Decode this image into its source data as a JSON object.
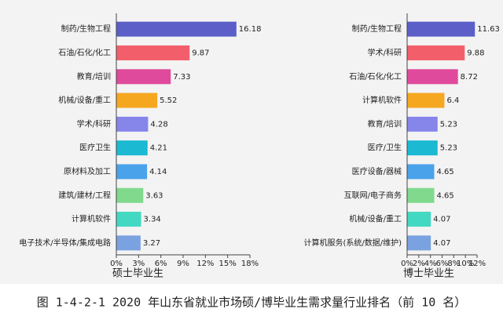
{
  "chart_data": [
    {
      "type": "barh",
      "xlabel": "硕士毕业生",
      "categories": [
        "制药/生物工程",
        "石油/石化/化工",
        "教育/培训",
        "机械/设备/重工",
        "学术/科研",
        "医疗卫生",
        "原材料及加工",
        "建筑/建材/工程",
        "计算机软件",
        "电子技术/半导体/集成电路"
      ],
      "values": [
        16.18,
        9.87,
        7.33,
        5.52,
        4.28,
        4.21,
        4.14,
        3.63,
        3.34,
        3.27
      ],
      "colors": [
        "#5b5fc7",
        "#f25f6b",
        "#e04a9c",
        "#f6a720",
        "#8585ea",
        "#1cb9d2",
        "#4aa2ea",
        "#80d98c",
        "#43d8c2",
        "#7ba2e0"
      ],
      "xlim": [
        0,
        18
      ],
      "xticks": [
        {
          "value": 0,
          "label": "0%"
        },
        {
          "value": 3,
          "label": "3%"
        },
        {
          "value": 6,
          "label": "6%"
        },
        {
          "value": 9,
          "label": "9%"
        },
        {
          "value": 12,
          "label": "12%"
        },
        {
          "value": 15,
          "label": "15%"
        },
        {
          "value": 18,
          "label": "18%"
        }
      ]
    },
    {
      "type": "barh",
      "xlabel": "博士毕业生",
      "categories": [
        "制药/生物工程",
        "学术/科研",
        "石油/石化/化工",
        "计算机软件",
        "教育/培训",
        "医疗/卫生",
        "医疗设备/器械",
        "互联网/电子商务",
        "机械/设备/重工",
        "计算机服务(系统/数据/维护)"
      ],
      "values": [
        11.63,
        9.88,
        8.72,
        6.4,
        5.23,
        5.23,
        4.65,
        4.65,
        4.07,
        4.07
      ],
      "colors": [
        "#5b5fc7",
        "#f25f6b",
        "#e04a9c",
        "#f6a720",
        "#8585ea",
        "#1cb9d2",
        "#4aa2ea",
        "#80d98c",
        "#43d8c2",
        "#7ba2e0"
      ],
      "xlim": [
        0,
        12
      ],
      "xticks": [
        {
          "value": 0,
          "label": "0%"
        },
        {
          "value": 2,
          "label": "2%"
        },
        {
          "value": 4,
          "label": "4%"
        },
        {
          "value": 6,
          "label": "6%"
        },
        {
          "value": 8,
          "label": "8%"
        },
        {
          "value": 10,
          "label": "10%"
        },
        {
          "value": 12,
          "label": "12%"
        }
      ]
    }
  ],
  "caption": "图 1-4-2-1 2020 年山东省就业市场硕/博毕业生需求量行业排名（前 10 名）"
}
